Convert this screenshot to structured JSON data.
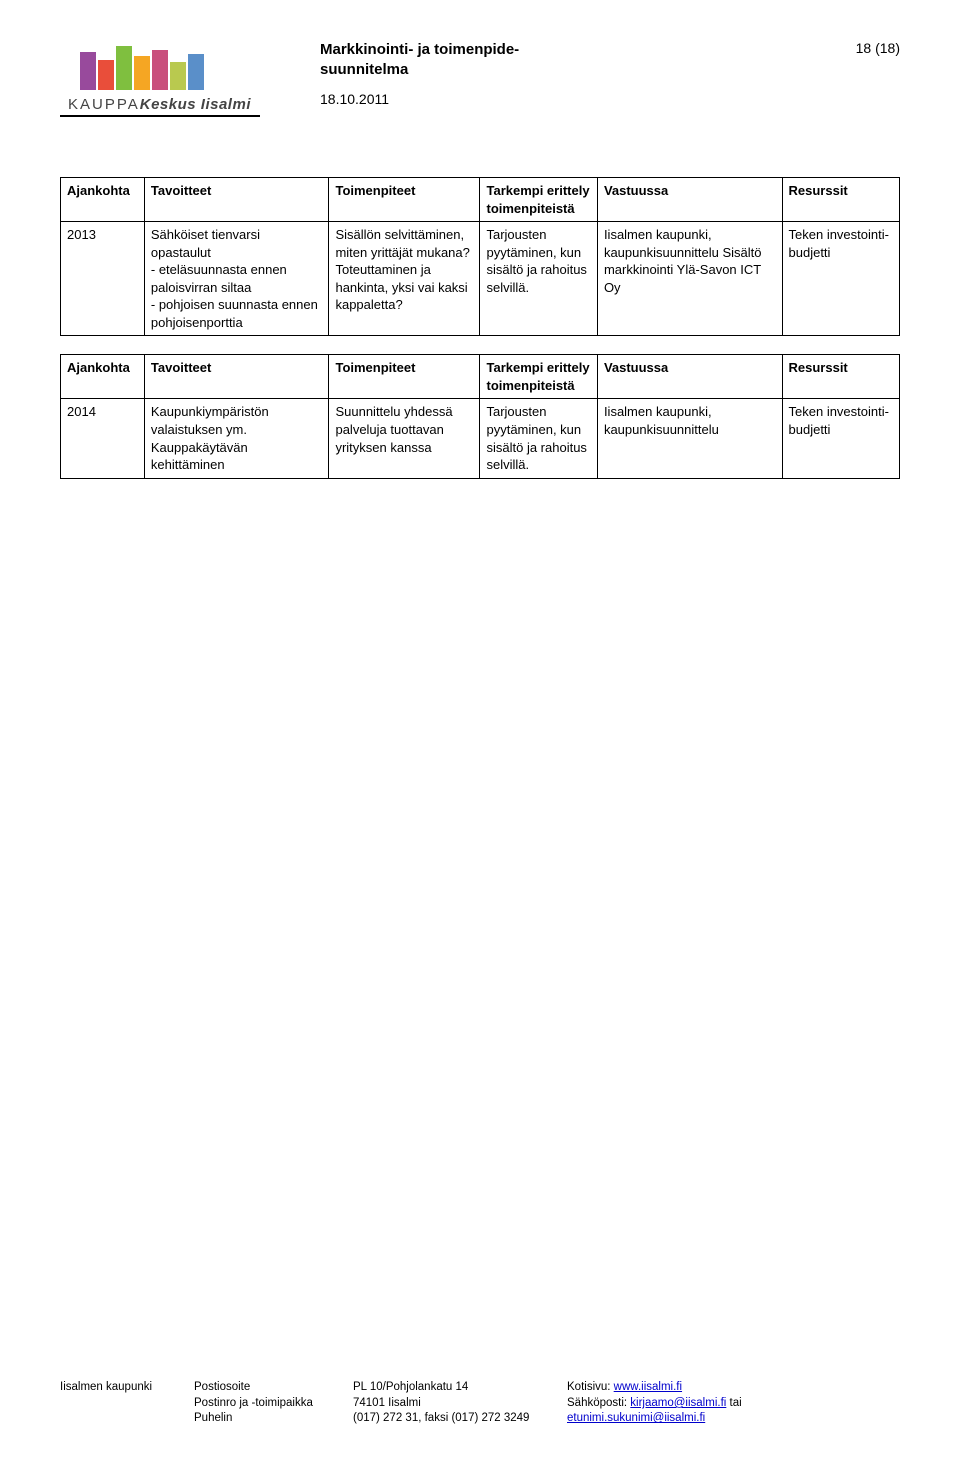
{
  "header": {
    "title_line1": "Markkinointi- ja toimenpide-",
    "title_line2": "suunnitelma",
    "date": "18.10.2011",
    "page_label": "18 (18)",
    "logo_text1": "KAUPPA",
    "logo_text2": "Keskus",
    "logo_text3": " Iisalmi"
  },
  "table_headers": {
    "time": "Ajankohta",
    "goals": "Tavoitteet",
    "actions": "Toimenpiteet",
    "detail": "Tarkempi erittely toimenpiteistä",
    "resp": "Vastuussa",
    "res": "Resurssit"
  },
  "table1": {
    "row": {
      "time": "2013",
      "goals": "Sähköiset tienvarsi opastaulut\n- eteläsuunnasta ennen paloisvirran siltaa\n- pohjoisen suunnasta ennen pohjoisenporttia",
      "actions": "Sisällön selvittäminen, miten yrittäjät mukana? Toteuttaminen ja hankinta, yksi vai kaksi kappaletta?",
      "detail": "Tarjousten pyytäminen, kun sisältö ja rahoitus selvillä.",
      "resp": "Iisalmen kaupunki, kaupunkisuunnittelu Sisältö markkinointi Ylä-Savon ICT Oy",
      "res": "Teken investointi-budjetti"
    }
  },
  "table2": {
    "row": {
      "time": "2014",
      "goals": "Kaupunkiympäristön valaistuksen ym. Kauppakäytävän kehittäminen",
      "actions": "Suunnittelu yhdessä palveluja tuottavan yrityksen kanssa",
      "detail": "Tarjousten pyytäminen, kun sisältö ja rahoitus selvillä.",
      "resp": "Iisalmen kaupunki, kaupunkisuunnittelu",
      "res": "Teken investointi-budjetti"
    }
  },
  "footer": {
    "c1": {
      "l1": "Iisalmen kaupunki",
      "l2": "",
      "l3": ""
    },
    "c2": {
      "l1": "Postiosoite",
      "l2": "Postinro ja -toimipaikka",
      "l3": "Puhelin"
    },
    "c3": {
      "l1": "PL 10/Pohjolankatu 14",
      "l2": "74101 Iisalmi",
      "l3": "(017) 272 31, faksi (017) 272 3249"
    },
    "c4": {
      "l1_pre": "Kotisivu: ",
      "l1_link": "www.iisalmi.fi",
      "l2_pre": "Sähköposti: ",
      "l2_link": "kirjaamo@iisalmi.fi",
      "l2_post": " tai",
      "l3_link": "etunimi.sukunimi@iisalmi.fi"
    }
  }
}
